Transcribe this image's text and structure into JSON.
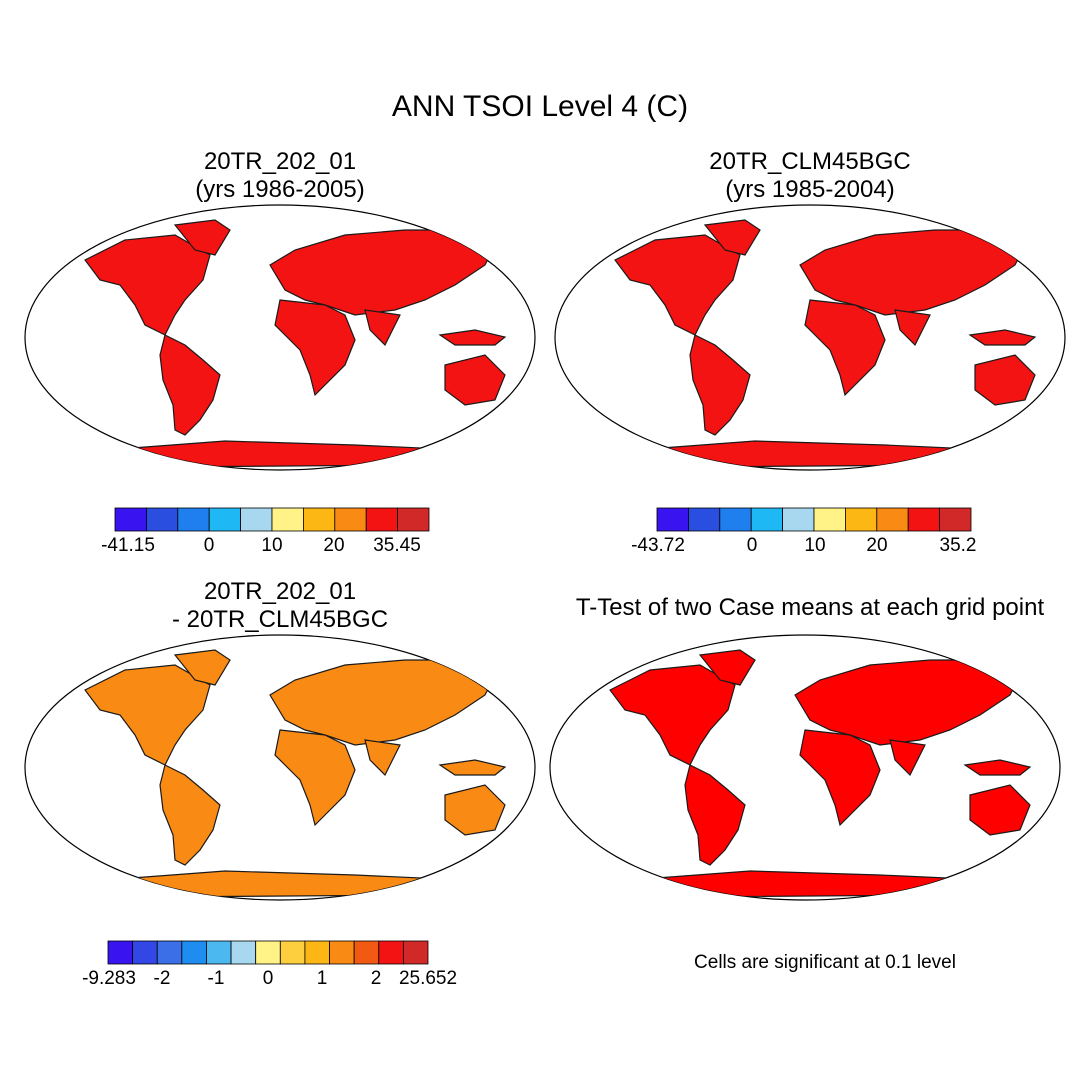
{
  "figure": {
    "title": "ANN TSOI Level 4 (C)",
    "note": "Cells are significant at 0.1 level"
  },
  "panels": [
    {
      "id": "case1",
      "title_line1": "20TR_202_01",
      "title_line2": "(yrs 1986-2005)",
      "colorbar": {
        "colors": [
          "#3a14f0",
          "#2a4fe0",
          "#1f7fef",
          "#1eb8f5",
          "#a8d8f0",
          "#fff286",
          "#fdb714",
          "#f98a14",
          "#f21312",
          "#d12828"
        ],
        "labels": [
          "-41.15",
          "0",
          "10",
          "20",
          "35.45"
        ]
      }
    },
    {
      "id": "case2",
      "title_line1": "20TR_CLM45BGC",
      "title_line2": "(yrs 1985-2004)",
      "colorbar": {
        "colors": [
          "#3a14f0",
          "#2a4fe0",
          "#1f7fef",
          "#1eb8f5",
          "#a8d8f0",
          "#fff286",
          "#fdb714",
          "#f98a14",
          "#f21312",
          "#d12828"
        ],
        "labels": [
          "-43.72",
          "0",
          "10",
          "20",
          "35.2"
        ]
      }
    },
    {
      "id": "difference",
      "title_line1": "20TR_202_01",
      "title_line2": "- 20TR_CLM45BGC",
      "colorbar": {
        "colors": [
          "#3a14f0",
          "#3347e6",
          "#3a6fe8",
          "#1f8cf0",
          "#4bb8f0",
          "#a8d8f0",
          "#fff286",
          "#fdcf3e",
          "#fdb714",
          "#f98a14",
          "#f25a14",
          "#f21312",
          "#d12828"
        ],
        "labels": [
          "-9.283",
          "-2",
          "-1",
          "0",
          "1",
          "2",
          "25.652"
        ]
      }
    },
    {
      "id": "ttest",
      "title_line1": "T-Test of two Case means at each grid point",
      "title_line2": ""
    }
  ]
}
